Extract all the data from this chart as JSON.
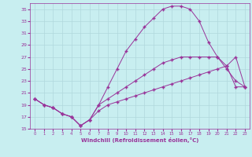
{
  "xlabel": "Windchill (Refroidissement éolien,°C)",
  "bg_color": "#c8eef0",
  "grid_color": "#b0d8dc",
  "line_color": "#993399",
  "xlim": [
    -0.5,
    23.5
  ],
  "ylim": [
    15,
    36
  ],
  "xticks": [
    0,
    1,
    2,
    3,
    4,
    5,
    6,
    7,
    8,
    9,
    10,
    11,
    12,
    13,
    14,
    15,
    16,
    17,
    18,
    19,
    20,
    21,
    22,
    23
  ],
  "yticks": [
    15,
    17,
    19,
    21,
    23,
    25,
    27,
    29,
    31,
    33,
    35
  ],
  "line2_x": [
    0,
    1,
    2,
    3,
    4,
    5,
    6,
    7,
    8,
    9,
    10,
    11,
    12,
    13,
    14,
    15,
    16,
    17,
    18,
    19,
    20,
    21,
    22,
    23
  ],
  "line2_y": [
    20,
    19,
    18.5,
    17.5,
    17,
    15.5,
    16.5,
    19,
    22,
    25,
    28,
    30,
    32,
    33.5,
    35,
    35.5,
    35.5,
    35,
    33,
    29.5,
    27,
    25,
    23,
    22
  ],
  "line3_x": [
    0,
    1,
    2,
    3,
    4,
    5,
    6,
    7,
    8,
    9,
    10,
    11,
    12,
    13,
    14,
    15,
    16,
    17,
    18,
    19,
    20,
    21,
    22,
    23
  ],
  "line3_y": [
    20,
    19,
    18.5,
    17.5,
    17,
    15.5,
    16.5,
    19,
    20,
    21,
    22,
    23,
    24,
    25,
    26,
    26.5,
    27,
    27,
    27,
    27,
    27,
    25.5,
    27,
    22
  ],
  "line1_full_x": [
    0,
    1,
    2,
    3,
    4,
    5,
    6,
    7,
    8,
    9,
    10,
    11,
    12,
    13,
    14,
    15,
    16,
    17,
    18,
    19,
    20,
    21,
    22,
    23
  ],
  "line1_full_y": [
    20,
    19,
    18.5,
    17.5,
    17,
    15.5,
    16.5,
    18,
    19,
    19.5,
    20,
    20.5,
    21,
    21.5,
    22,
    22.5,
    23,
    23.5,
    24,
    24.5,
    25,
    25.5,
    22,
    22
  ],
  "marker": "+"
}
